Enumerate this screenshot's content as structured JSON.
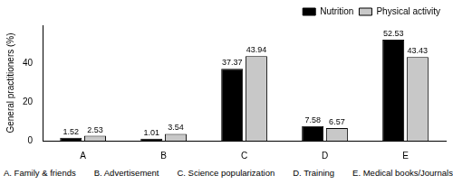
{
  "chart_data": {
    "type": "bar",
    "y_label": "General practitioners (%)",
    "categories": [
      "A",
      "B",
      "C",
      "D",
      "E"
    ],
    "series": [
      {
        "name": "Nutrition",
        "color": "#000000",
        "values": [
          1.52,
          1.01,
          37.37,
          7.58,
          52.53
        ]
      },
      {
        "name": "Physical activity",
        "color": "#c8c8c8",
        "values": [
          2.53,
          3.54,
          43.94,
          6.57,
          43.43
        ]
      }
    ],
    "ylim": [
      0,
      60
    ],
    "yticks": [
      0,
      20,
      40
    ],
    "grid": false,
    "legend": "top-right",
    "data_labels": true,
    "annotations": [
      "A. Family & friends",
      "B. Advertisement",
      "C. Science popularization",
      "D. Training",
      "E. Medical books/Journals"
    ]
  }
}
